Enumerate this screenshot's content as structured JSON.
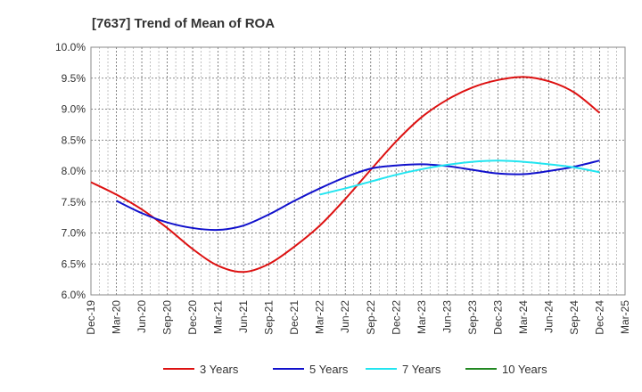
{
  "chart_data": {
    "type": "line",
    "title": "[7637]  Trend of Mean of ROA",
    "xlabel": "",
    "ylabel": "",
    "ylim": [
      6.0,
      10.0
    ],
    "y_ticks": [
      "6.0%",
      "6.5%",
      "7.0%",
      "7.5%",
      "8.0%",
      "8.5%",
      "9.0%",
      "9.5%",
      "10.0%"
    ],
    "y_tick_values": [
      6.0,
      6.5,
      7.0,
      7.5,
      8.0,
      8.5,
      9.0,
      9.5,
      10.0
    ],
    "categories": [
      "Dec-19",
      "Mar-20",
      "Jun-20",
      "Sep-20",
      "Dec-20",
      "Mar-21",
      "Jun-21",
      "Sep-21",
      "Dec-21",
      "Mar-22",
      "Jun-22",
      "Sep-22",
      "Dec-22",
      "Mar-23",
      "Jun-23",
      "Sep-23",
      "Dec-23",
      "Mar-24",
      "Jun-24",
      "Sep-24",
      "Dec-24",
      "Mar-25"
    ],
    "grid": true,
    "legend_position": "bottom",
    "series": [
      {
        "name": "3 Years",
        "color": "#dd1111",
        "values": [
          7.82,
          7.62,
          7.38,
          7.08,
          6.74,
          6.47,
          6.37,
          6.5,
          6.78,
          7.12,
          7.55,
          8.02,
          8.48,
          8.87,
          9.15,
          9.35,
          9.47,
          9.52,
          9.45,
          9.27,
          8.94,
          null
        ]
      },
      {
        "name": "5 Years",
        "color": "#1111cc",
        "values": [
          null,
          7.52,
          7.32,
          7.17,
          7.08,
          7.05,
          7.12,
          7.3,
          7.52,
          7.72,
          7.9,
          8.04,
          8.09,
          8.11,
          8.08,
          8.02,
          7.96,
          7.95,
          8.0,
          8.07,
          8.17,
          null
        ]
      },
      {
        "name": "7 Years",
        "color": "#22e5f0",
        "values": [
          null,
          null,
          null,
          null,
          null,
          null,
          null,
          null,
          null,
          7.62,
          7.72,
          7.83,
          7.94,
          8.03,
          8.1,
          8.15,
          8.17,
          8.15,
          8.11,
          8.06,
          7.98,
          null
        ]
      },
      {
        "name": "10 Years",
        "color": "#228822",
        "values": [
          null,
          null,
          null,
          null,
          null,
          null,
          null,
          null,
          null,
          null,
          null,
          null,
          null,
          null,
          null,
          null,
          null,
          null,
          null,
          null,
          null,
          null
        ]
      }
    ]
  }
}
